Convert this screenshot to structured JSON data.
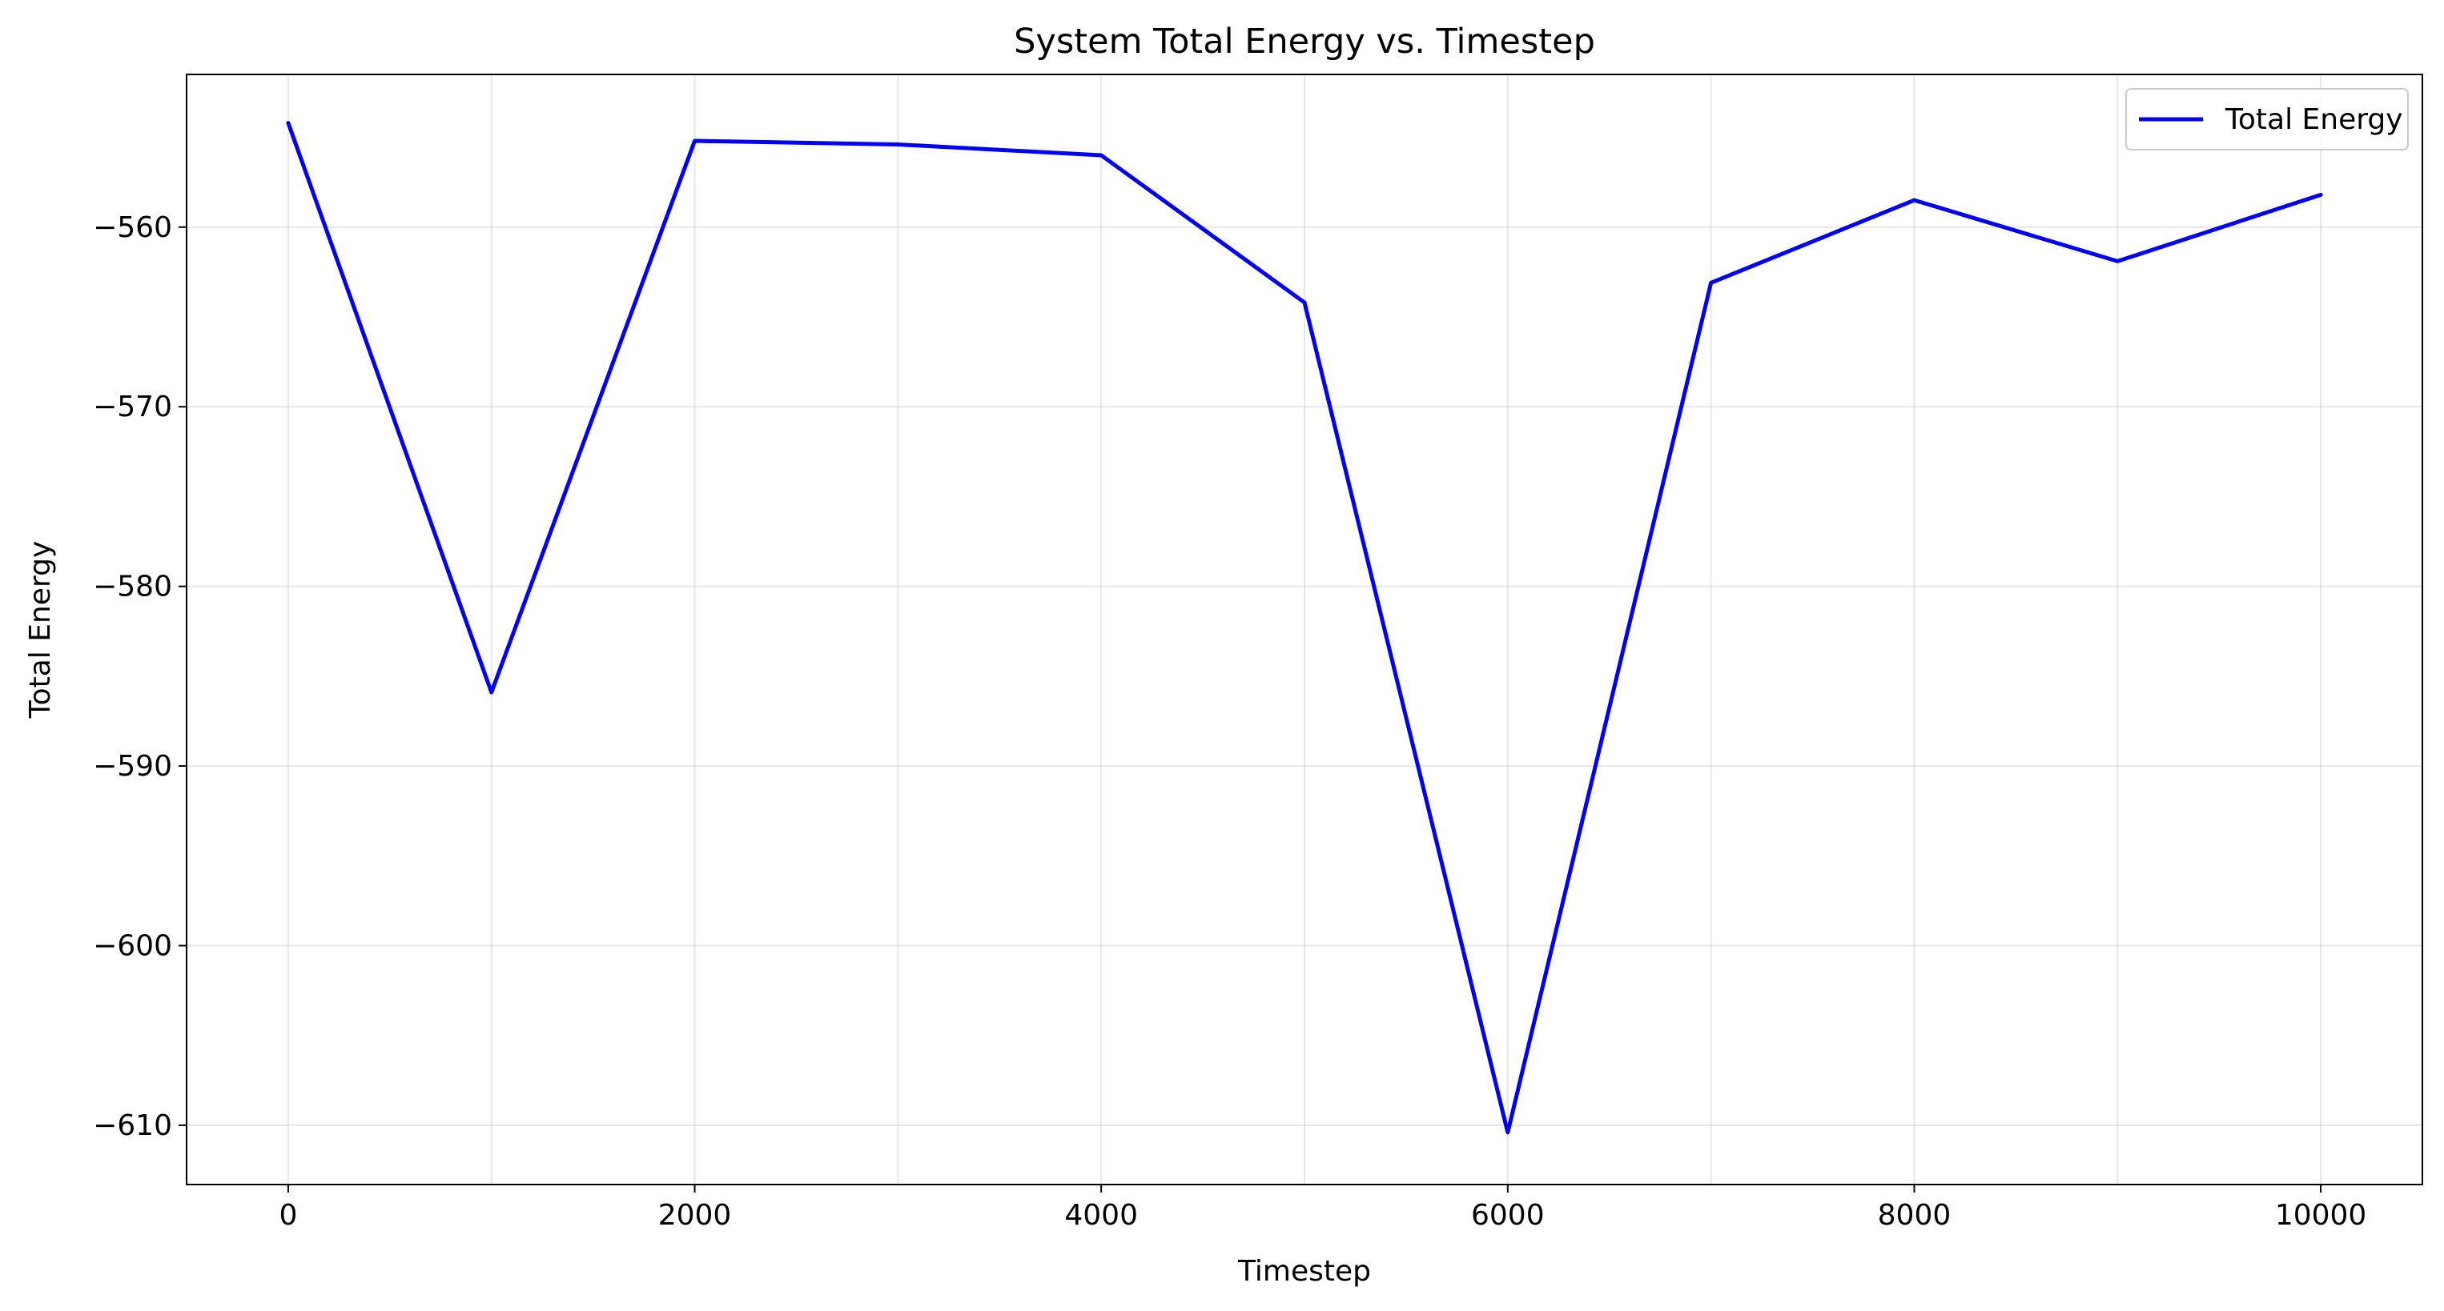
{
  "chart_data": {
    "type": "line",
    "title": "System Total Energy vs. Timestep",
    "xlabel": "Timestep",
    "ylabel": "Total Energy",
    "x": [
      0,
      1000,
      2000,
      3000,
      4000,
      5000,
      6000,
      7000,
      8000,
      9000,
      10000
    ],
    "series": [
      {
        "name": "Total Energy",
        "color": "#0000ff",
        "values": [
          -554.2,
          -585.9,
          -555.2,
          -555.4,
          -556.0,
          -564.2,
          -610.4,
          -563.1,
          -558.5,
          -561.9,
          -558.2
        ]
      }
    ],
    "xlim": [
      -500,
      10500
    ],
    "ylim": [
      -613.3,
      -551.5
    ],
    "xticks": [
      0,
      2000,
      4000,
      6000,
      8000,
      10000
    ],
    "xtick_labels": [
      "0",
      "2000",
      "4000",
      "6000",
      "8000",
      "10000"
    ],
    "yticks": [
      -560,
      -570,
      -580,
      -590,
      -600,
      -610
    ],
    "ytick_labels": [
      "−560",
      "−570",
      "−580",
      "−590",
      "−600",
      "−610"
    ],
    "xgrid_ticks": [
      0,
      1000,
      2000,
      3000,
      4000,
      5000,
      6000,
      7000,
      8000,
      9000,
      10000
    ],
    "grid": true,
    "legend": {
      "position": "top-right",
      "entries": [
        "Total Energy"
      ]
    }
  }
}
